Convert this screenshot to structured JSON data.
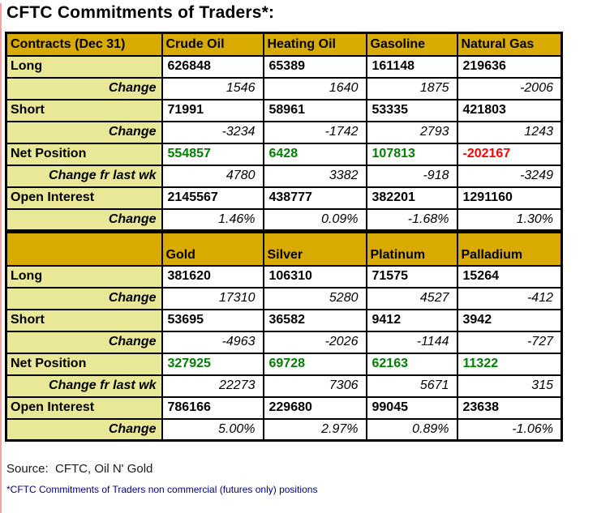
{
  "title": "CFTC Commitments of Traders*:",
  "colors": {
    "header_bg": "#D9AB00",
    "label_bg": "#E8E896",
    "value_green": "#008000",
    "value_red": "#FF0000",
    "footnote_navy": "#00007F"
  },
  "tables": [
    {
      "name": "energy",
      "header": [
        "Contracts (Dec 31)",
        "Crude Oil",
        "Heating Oil",
        "Gasoline",
        "Natural Gas"
      ],
      "rows": [
        {
          "label": "Long",
          "type": "value",
          "cells": [
            "626848",
            "65389",
            "161148",
            "219636"
          ]
        },
        {
          "label": "Change",
          "type": "change",
          "cells": [
            "1546",
            "1640",
            "1875",
            "-2006"
          ]
        },
        {
          "label": "Short",
          "type": "value",
          "cells": [
            "71991",
            "58961",
            "53335",
            "421803"
          ]
        },
        {
          "label": "Change",
          "type": "change",
          "cells": [
            "-3234",
            "-1742",
            "2793",
            "1243"
          ]
        },
        {
          "label": "Net Position",
          "type": "value",
          "cells": [
            "554857",
            "6428",
            "107813",
            "-202167"
          ],
          "cell_colors": [
            "green",
            "green",
            "green",
            "red"
          ]
        },
        {
          "label": "Change fr last wk",
          "type": "change",
          "cells": [
            "4780",
            "3382",
            "-918",
            "-3249"
          ]
        },
        {
          "label": "Open Interest",
          "type": "value",
          "cells": [
            "2145567",
            "438777",
            "382201",
            "1291160"
          ]
        },
        {
          "label": "Change",
          "type": "change",
          "cells": [
            "1.46%",
            "0.09%",
            "-1.68%",
            "1.30%"
          ]
        }
      ]
    },
    {
      "name": "metals",
      "header": [
        "",
        "Gold",
        "Silver",
        "Platinum",
        "Palladium"
      ],
      "rows": [
        {
          "label": "Long",
          "type": "value",
          "cells": [
            "381620",
            "106310",
            "71575",
            "15264"
          ]
        },
        {
          "label": "Change",
          "type": "change",
          "cells": [
            "17310",
            "5280",
            "4527",
            "-412"
          ]
        },
        {
          "label": "Short",
          "type": "value",
          "cells": [
            "53695",
            "36582",
            "9412",
            "3942"
          ]
        },
        {
          "label": "Change",
          "type": "change",
          "cells": [
            "-4963",
            "-2026",
            "-1144",
            "-727"
          ]
        },
        {
          "label": "Net Position",
          "type": "value",
          "cells": [
            "327925",
            "69728",
            "62163",
            "11322"
          ],
          "cell_colors": [
            "green",
            "green",
            "green",
            "green"
          ]
        },
        {
          "label": "Change fr last wk",
          "type": "change",
          "cells": [
            "22273",
            "7306",
            "5671",
            "315"
          ]
        },
        {
          "label": "Open Interest",
          "type": "value",
          "cells": [
            "786166",
            "229680",
            "99045",
            "23638"
          ]
        },
        {
          "label": "Change",
          "type": "change",
          "cells": [
            "5.00%",
            "2.97%",
            "0.89%",
            "-1.06%"
          ]
        }
      ]
    }
  ],
  "footer": {
    "source": "Source:  CFTC, Oil N' Gold",
    "footnote": "*CFTC Commitments of Traders non commercial (futures only) positions"
  }
}
